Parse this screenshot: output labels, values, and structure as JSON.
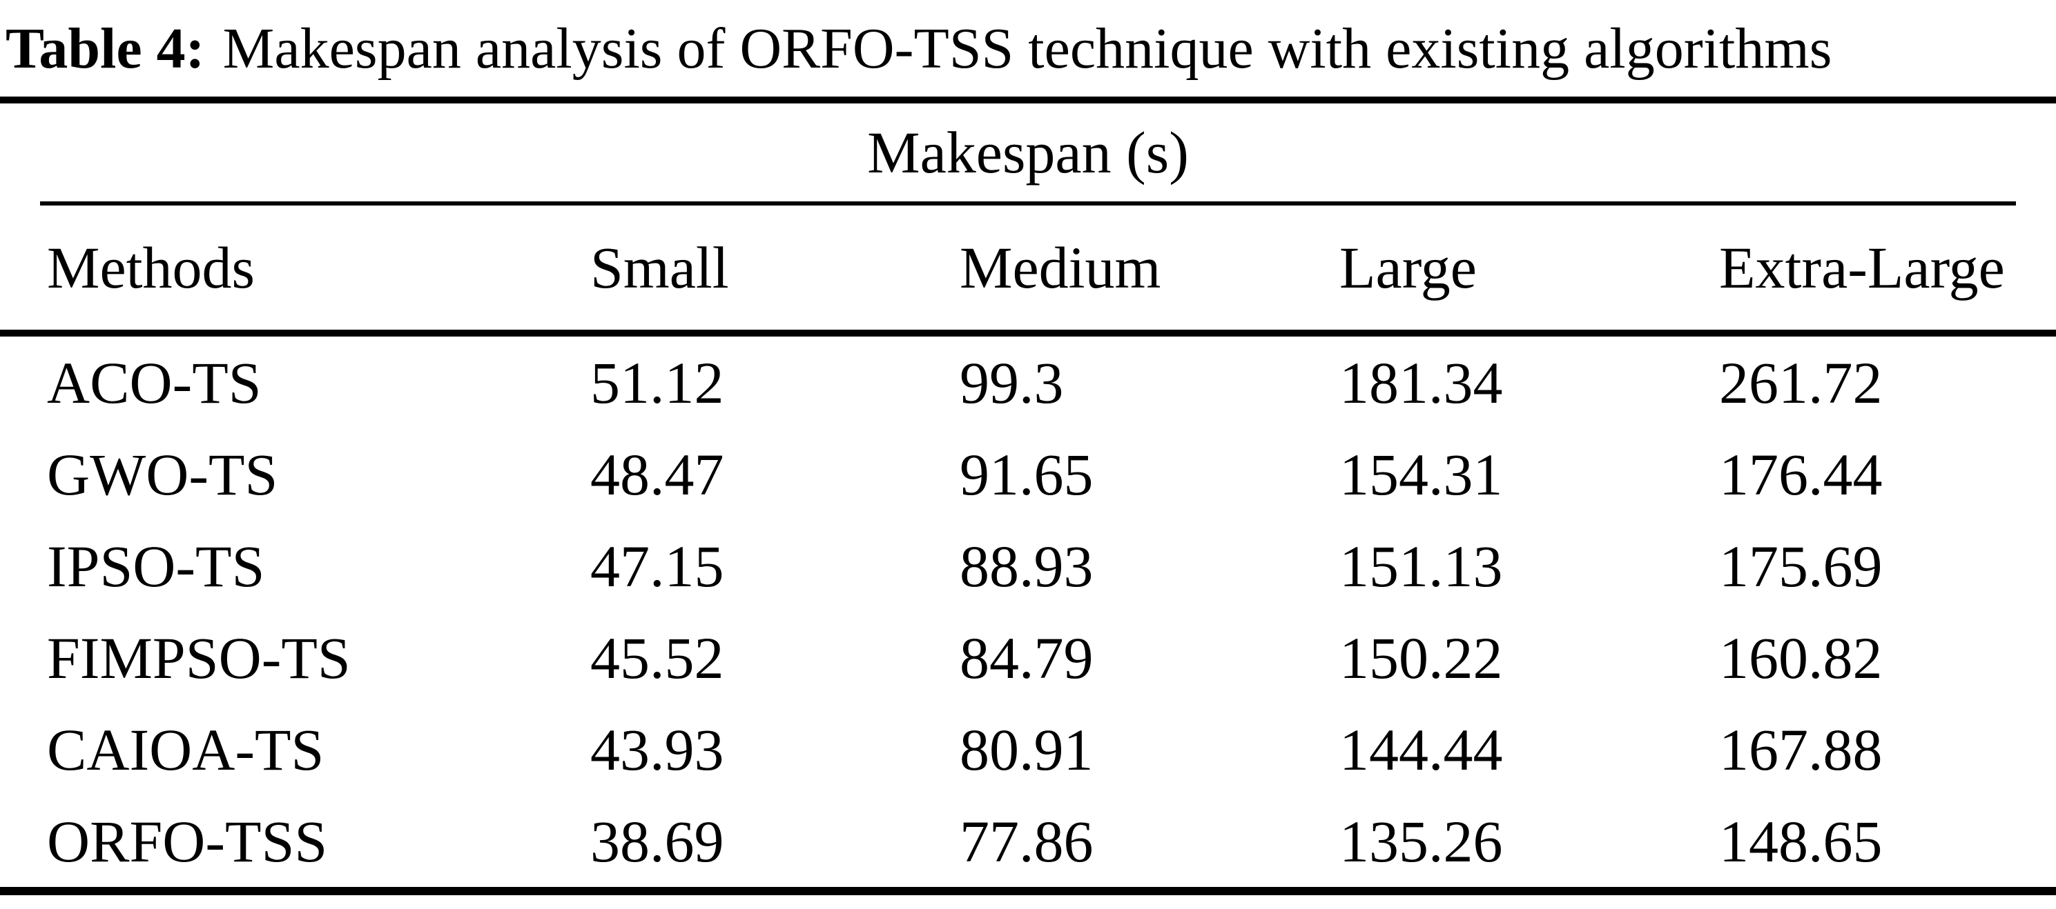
{
  "caption": {
    "label": "Table 4:",
    "text": "Makespan analysis of ORFO-TSS technique with existing algorithms"
  },
  "chart_data": {
    "type": "table",
    "title": "Table 4: Makespan analysis of ORFO-TSS technique with existing algorithms",
    "group_header": "Makespan (s)",
    "columns": [
      "Methods",
      "Small",
      "Medium",
      "Large",
      "Extra-Large"
    ],
    "rows": [
      [
        "ACO-TS",
        51.12,
        99.3,
        181.34,
        261.72
      ],
      [
        "GWO-TS",
        48.47,
        91.65,
        154.31,
        176.44
      ],
      [
        "IPSO-TS",
        47.15,
        88.93,
        151.13,
        175.69
      ],
      [
        "FIMPSO-TS",
        45.52,
        84.79,
        150.22,
        160.82
      ],
      [
        "CAIOA-TS",
        43.93,
        80.91,
        144.44,
        167.88
      ],
      [
        "ORFO-TSS",
        38.69,
        77.86,
        135.26,
        148.65
      ]
    ]
  }
}
